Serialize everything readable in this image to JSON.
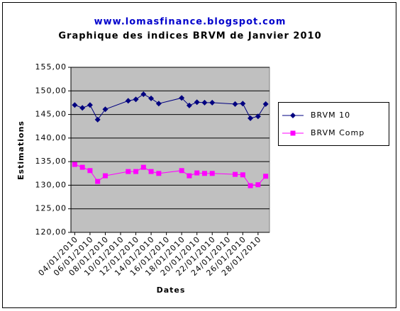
{
  "chart_data": {
    "type": "line",
    "title": "www.lomasfinance.blogspot.com",
    "subtitle": "Graphique des indices BRVM de Janvier 2010",
    "x_label": "Dates",
    "y_label": "Estimations",
    "x": [
      "04/01/2010",
      "05/01/2010",
      "06/01/2010",
      "07/01/2010",
      "08/01/2010",
      "11/01/2010",
      "12/01/2010",
      "13/01/2010",
      "14/01/2010",
      "15/01/2010",
      "18/01/2010",
      "19/01/2010",
      "20/01/2010",
      "21/01/2010",
      "22/01/2010",
      "25/01/2010",
      "26/01/2010",
      "27/01/2010",
      "28/01/2010",
      "29/01/2010"
    ],
    "series": [
      {
        "name": "BRVM 10",
        "color": "#000080",
        "marker": "diamond",
        "values": [
          147.0,
          146.4,
          147.0,
          143.9,
          146.1,
          147.9,
          148.2,
          149.3,
          148.4,
          147.3,
          148.5,
          146.9,
          147.6,
          147.5,
          147.5,
          147.2,
          147.3,
          144.2,
          144.6,
          147.2
        ]
      },
      {
        "name": "BRVM Comp",
        "color": "#ff00ff",
        "marker": "square",
        "values": [
          134.4,
          133.8,
          133.1,
          130.8,
          132.0,
          132.9,
          132.9,
          133.8,
          132.9,
          132.5,
          133.1,
          132.0,
          132.6,
          132.5,
          132.5,
          132.3,
          132.2,
          129.9,
          130.1,
          131.9
        ]
      }
    ],
    "xlim": [
      "04/01/2010",
      "29/01/2010"
    ],
    "xticks": [
      "04/01/2010",
      "06/01/2010",
      "08/01/2010",
      "10/01/2010",
      "12/01/2010",
      "14/01/2010",
      "16/01/2010",
      "18/01/2010",
      "20/01/2010",
      "22/01/2010",
      "24/01/2010",
      "26/01/2010",
      "28/01/2010"
    ],
    "ylim": [
      120,
      155
    ],
    "yticks": [
      {
        "value": 120,
        "label": "120,00"
      },
      {
        "value": 125,
        "label": "125,00"
      },
      {
        "value": 130,
        "label": "130,00"
      },
      {
        "value": 135,
        "label": "135,00"
      },
      {
        "value": 140,
        "label": "140,00"
      },
      {
        "value": 145,
        "label": "145,00"
      },
      {
        "value": 150,
        "label": "150,00"
      },
      {
        "value": 155,
        "label": "155,00"
      }
    ],
    "grid": true,
    "plot_background": "#c0c0c0",
    "legend": "right"
  }
}
